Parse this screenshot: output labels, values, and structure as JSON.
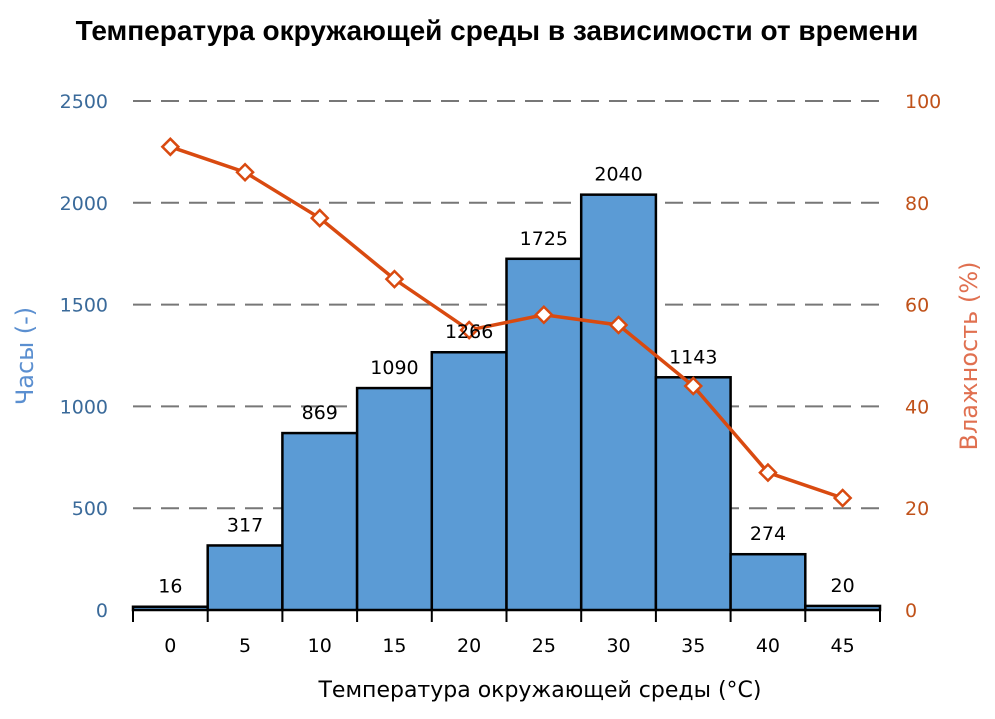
{
  "chart_data": {
    "type": "bar+line",
    "title": "Температура окружающей среды в зависимости от времени",
    "xlabel": "Температура окружающей среды (°C)",
    "ylabel": "Часы (-)",
    "y2label": "Влажность (%)",
    "categories": [
      "0",
      "5",
      "10",
      "15",
      "20",
      "25",
      "30",
      "35",
      "40",
      "45"
    ],
    "series": [
      {
        "name": "Часы",
        "type": "bar",
        "axis": "left",
        "color": "#5b9bd5",
        "values": [
          16,
          317,
          869,
          1090,
          1266,
          1725,
          2040,
          1143,
          274,
          20
        ]
      },
      {
        "name": "Влажность",
        "type": "line",
        "axis": "right",
        "color": "#d94a10",
        "values": [
          91,
          86,
          77,
          65,
          55,
          58,
          56,
          44,
          27,
          22
        ]
      }
    ],
    "ylim": [
      0,
      2500
    ],
    "y2lim": [
      0,
      100
    ],
    "yticks": [
      "0",
      "500",
      "1000",
      "1500",
      "2000",
      "2500"
    ],
    "y2ticks": [
      "0",
      "20",
      "40",
      "60",
      "80",
      "100"
    ],
    "grid": "horizontal dashed"
  }
}
